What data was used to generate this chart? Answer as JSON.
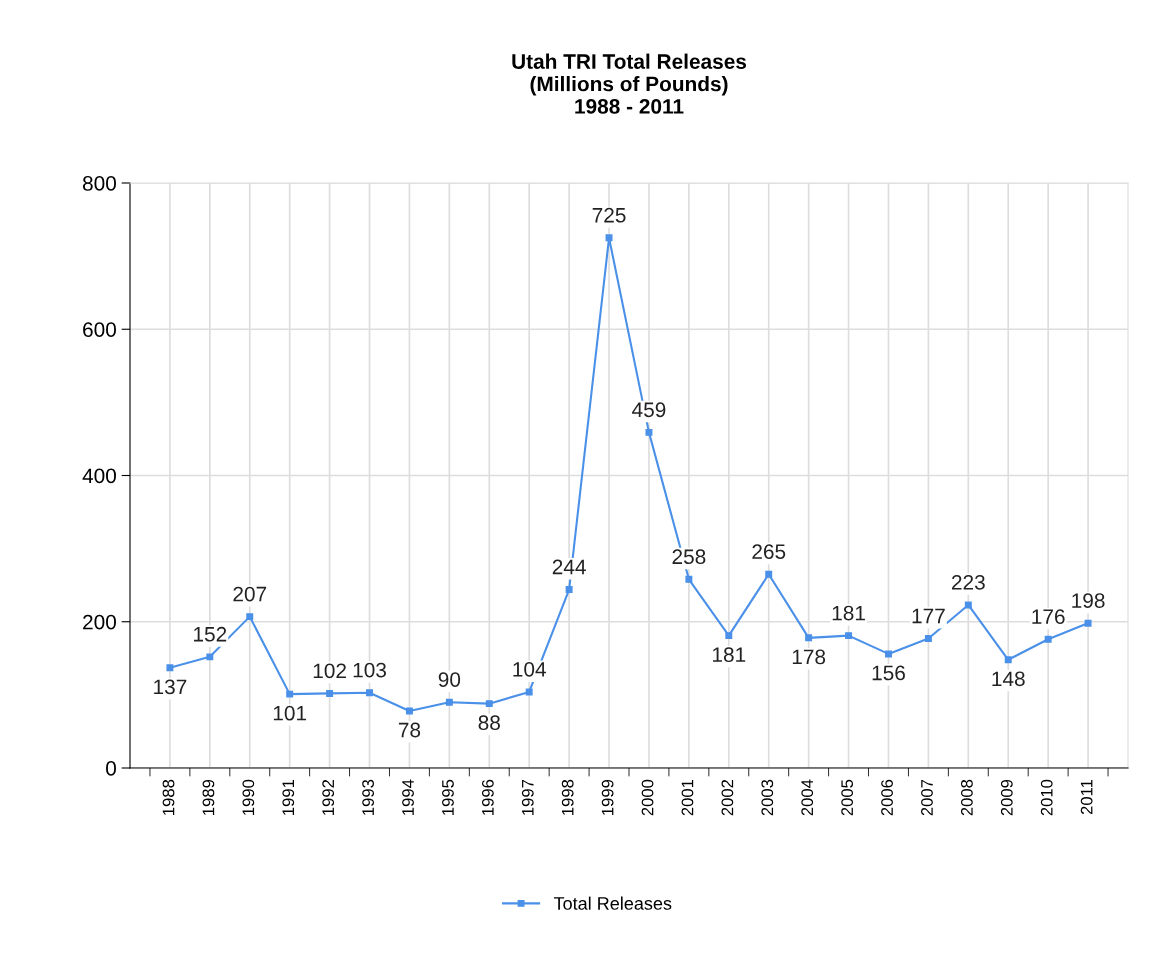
{
  "chart_data": {
    "type": "line",
    "title": "Utah TRI Total Releases\n(Millions of Pounds)\n1988 - 2011",
    "categories": [
      "1988",
      "1989",
      "1990",
      "1991",
      "1992",
      "1993",
      "1994",
      "1995",
      "1996",
      "1997",
      "1998",
      "1999",
      "2000",
      "2001",
      "2002",
      "2003",
      "2004",
      "2005",
      "2006",
      "2007",
      "2008",
      "2009",
      "2010",
      "2011"
    ],
    "series": [
      {
        "name": "Total Releases",
        "color": "#4a90e8",
        "values": [
          137,
          152,
          207,
          101,
          102,
          103,
          78,
          90,
          88,
          104,
          244,
          725,
          459,
          258,
          181,
          265,
          178,
          181,
          156,
          177,
          223,
          148,
          176,
          198
        ]
      }
    ],
    "ylim": [
      0,
      800
    ],
    "yticks": [
      0,
      200,
      400,
      600,
      800
    ],
    "grid": true,
    "legend": "bottom",
    "marker": "square",
    "line_style": "solid",
    "data_labels": true
  }
}
